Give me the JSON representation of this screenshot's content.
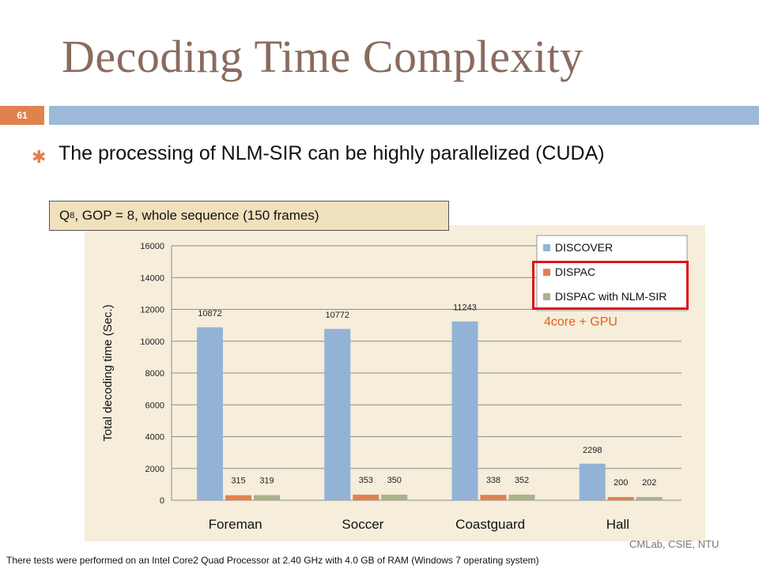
{
  "slide": {
    "title": "Decoding Time Complexity",
    "page_number": "61",
    "bullet_icon": "asterisk-bullet-icon",
    "bullet": "The processing of NLM-SIR can be highly parallelized (CUDA)",
    "caption_pre": "Q",
    "caption_sub": "8",
    "caption_post": ", GOP = 8, whole sequence (150 frames)",
    "annotation": "4core + GPU",
    "footnote": "There tests were performed on an Intel Core2 Quad Processor at 2.40 GHz with 4.0 GB of RAM (Windows 7 operating system)",
    "credit": "CMLab, CSIE, NTU",
    "colors": {
      "title": "#8a6b5e",
      "accent_orange": "#e1824e",
      "rule_blue": "#9dbad8",
      "highlight_red": "#e0121a"
    }
  },
  "chart_data": {
    "type": "bar",
    "categories": [
      "Foreman",
      "Soccer",
      "Coastguard",
      "Hall"
    ],
    "series": [
      {
        "name": "DISCOVER",
        "values": [
          10872,
          10772,
          11243,
          2298
        ],
        "color": "#93b3d6"
      },
      {
        "name": "DISPAC",
        "values": [
          315,
          353,
          338,
          200
        ],
        "color": "#e1824e"
      },
      {
        "name": "DISPAC with NLM-SIR",
        "values": [
          319,
          350,
          352,
          202
        ],
        "color": "#a8b38a"
      }
    ],
    "ylabel": "Total decoding time (Sec.)",
    "ylim": [
      0,
      16000
    ],
    "yticks": [
      0,
      2000,
      4000,
      6000,
      8000,
      10000,
      12000,
      14000,
      16000
    ],
    "grid": true,
    "legend": "top-right"
  }
}
